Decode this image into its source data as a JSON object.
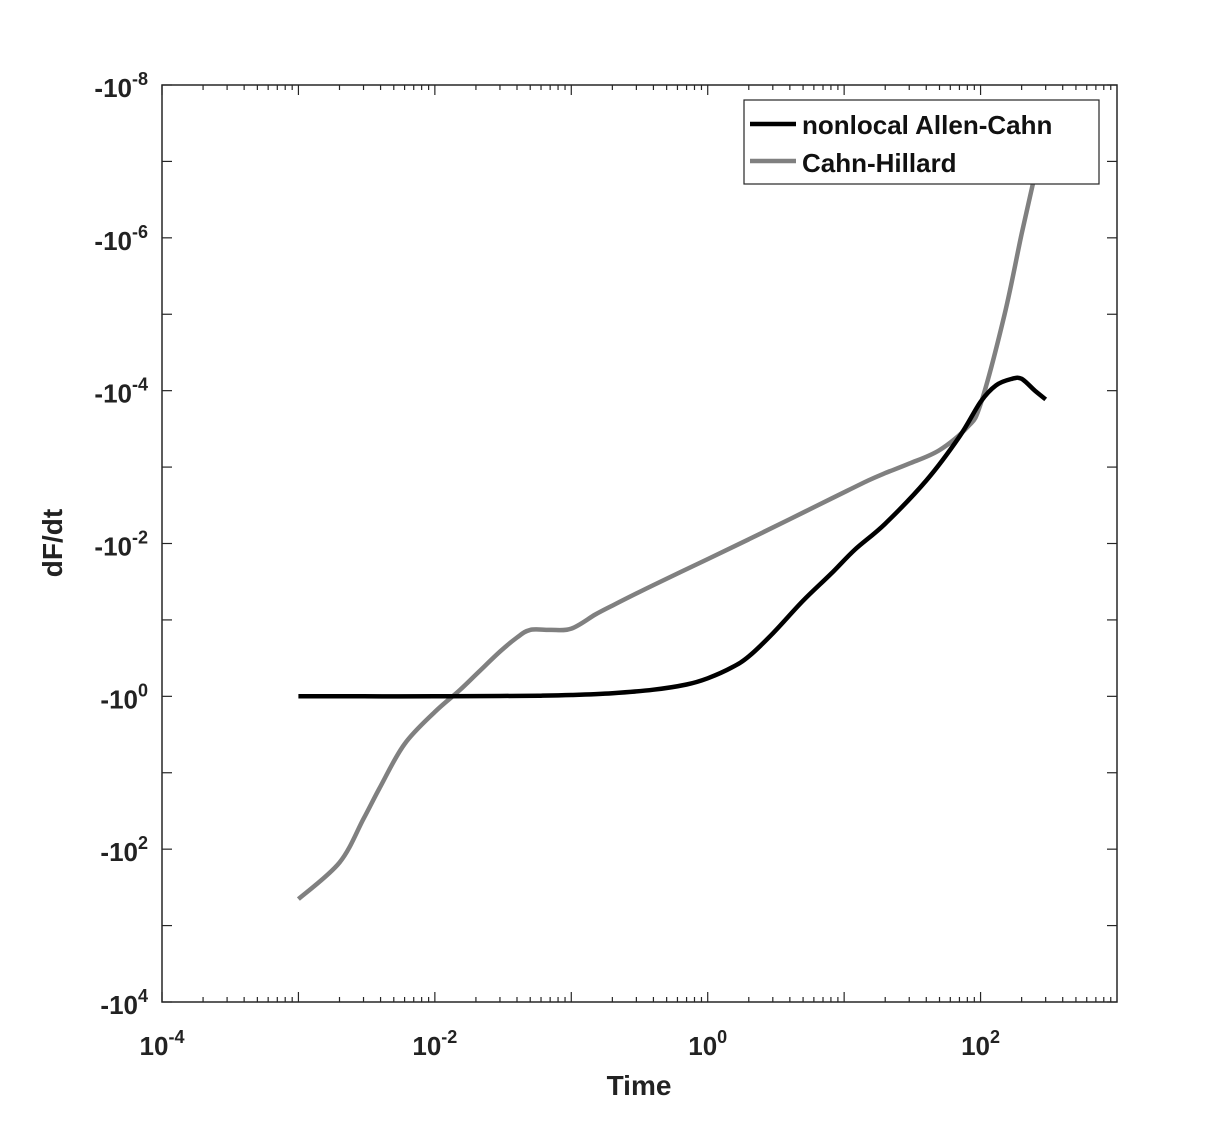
{
  "chart_data": {
    "type": "line",
    "xscale": "log",
    "yscale": "log",
    "xlabel": "Time",
    "ylabel": "dF/dt",
    "xlim": [
      0.0001,
      1000
    ],
    "ylim": [
      -10000,
      -1e-08
    ],
    "x_ticks": [
      {
        "value": 0.0001,
        "base": "10",
        "exp": "-4"
      },
      {
        "value": 0.01,
        "base": "10",
        "exp": "-2"
      },
      {
        "value": 1,
        "base": "10",
        "exp": "0"
      },
      {
        "value": 100,
        "base": "10",
        "exp": "2"
      }
    ],
    "y_ticks": [
      {
        "value": -1e-08,
        "base": "-10",
        "exp": "-8"
      },
      {
        "value": -1e-06,
        "base": "-10",
        "exp": "-6"
      },
      {
        "value": -0.0001,
        "base": "-10",
        "exp": "-4"
      },
      {
        "value": -0.01,
        "base": "-10",
        "exp": "-2"
      },
      {
        "value": -1,
        "base": "-10",
        "exp": "0"
      },
      {
        "value": -100,
        "base": "-10",
        "exp": "2"
      },
      {
        "value": -10000,
        "base": "-10",
        "exp": "4"
      }
    ],
    "grid": false,
    "legend": "top-right",
    "series": [
      {
        "name": "nonlocal Allen-Cahn",
        "color": "#000000",
        "x": [
          0.001,
          0.003,
          0.01,
          0.03,
          0.06,
          0.1,
          0.2,
          0.4,
          0.7,
          1,
          1.5,
          2,
          3,
          5,
          8,
          12,
          20,
          40,
          70,
          100,
          130,
          170,
          200,
          250,
          300
        ],
        "y": [
          -1,
          -1,
          -1,
          -0.99,
          -0.98,
          -0.96,
          -0.91,
          -0.82,
          -0.7,
          -0.58,
          -0.42,
          -0.3,
          -0.15,
          -0.056,
          -0.025,
          -0.012,
          -0.0055,
          -0.0015,
          -0.0004,
          -0.00014,
          -8.5e-05,
          -7e-05,
          -7e-05,
          -0.0001,
          -0.00013
        ]
      },
      {
        "name": "Cahn-Hillard",
        "color": "#808080",
        "x": [
          0.001,
          0.002,
          0.003,
          0.004,
          0.006,
          0.01,
          0.015,
          0.02,
          0.03,
          0.04,
          0.05,
          0.07,
          0.1,
          0.15,
          0.2,
          0.4,
          1,
          2,
          4,
          8,
          15,
          20,
          30,
          50,
          80,
          100,
          150,
          200,
          250,
          300
        ],
        "y": [
          -450,
          -150,
          -40,
          -15,
          -4.2,
          -1.6,
          -0.85,
          -0.52,
          -0.26,
          -0.17,
          -0.135,
          -0.135,
          -0.13,
          -0.085,
          -0.065,
          -0.035,
          -0.016,
          -0.0088,
          -0.0048,
          -0.0026,
          -0.0015,
          -0.0012,
          -0.0009,
          -0.0006,
          -0.0003,
          -0.00015,
          -1e-05,
          -8.9e-07,
          -1.5e-07,
          -4e-08
        ]
      }
    ]
  }
}
